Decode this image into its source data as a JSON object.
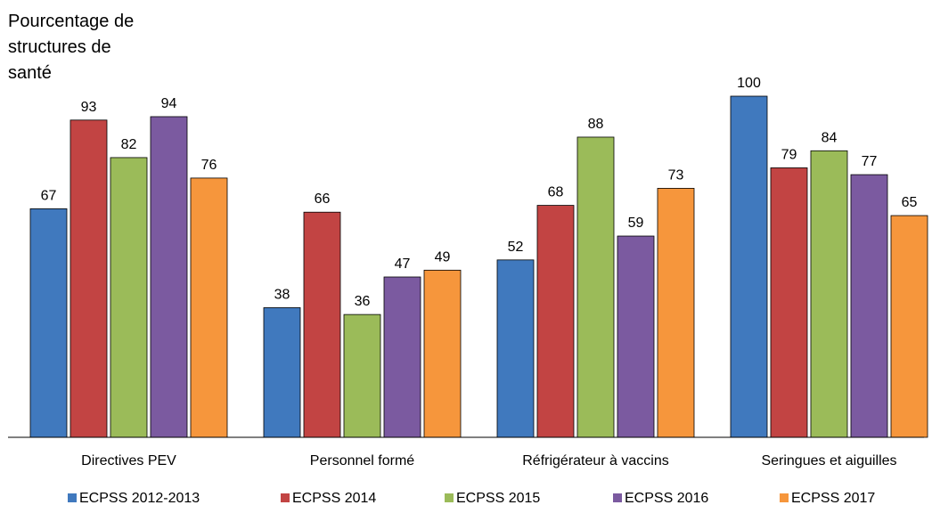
{
  "chart_data": {
    "type": "bar",
    "ylabel_lines": [
      "Pourcentage de",
      "structures de",
      "santé"
    ],
    "categories": [
      "Directives PEV",
      "Personnel formé",
      "Réfrigérateur à vaccins",
      "Seringues et aiguilles"
    ],
    "series": [
      {
        "name": "ECPSS 2012-2013",
        "color": "#4079be",
        "values": [
          67,
          38,
          52,
          100
        ]
      },
      {
        "name": "ECPSS 2014",
        "color": "#c24443",
        "values": [
          93,
          66,
          68,
          79
        ]
      },
      {
        "name": "ECPSS 2015",
        "color": "#9bbb59",
        "values": [
          82,
          36,
          88,
          84
        ]
      },
      {
        "name": "ECPSS 2016",
        "color": "#7b5aa0",
        "values": [
          94,
          47,
          59,
          77
        ]
      },
      {
        "name": "ECPSS 2017",
        "color": "#f6963c",
        "values": [
          76,
          49,
          73,
          65
        ]
      }
    ],
    "ylim": [
      0,
      100
    ],
    "grid": false,
    "legend_position": "bottom"
  }
}
